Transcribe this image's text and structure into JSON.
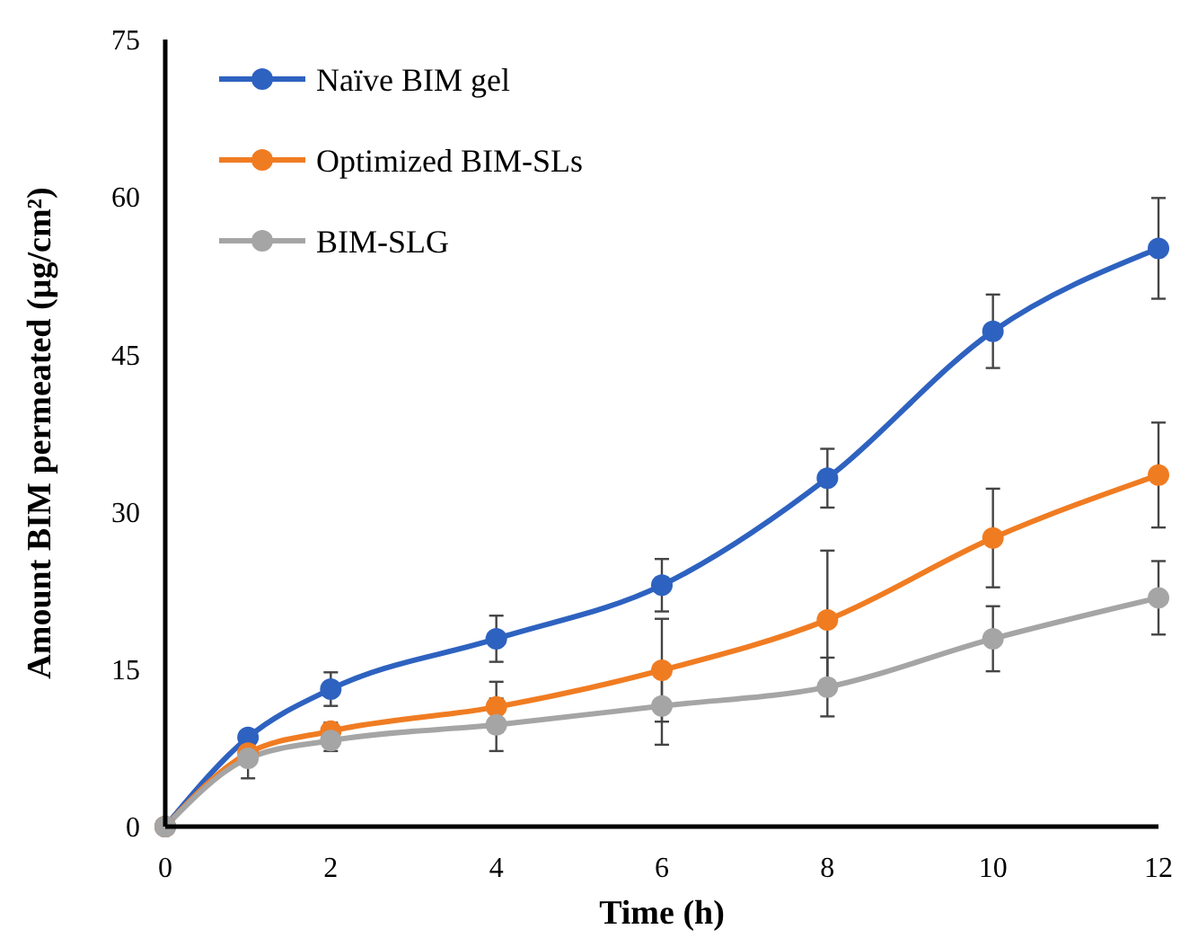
{
  "chart_data": {
    "type": "line",
    "xlabel": "Time (h)",
    "ylabel": "Amount BIM permeated (µg/cm²)",
    "x": [
      0,
      1,
      2,
      4,
      6,
      8,
      10,
      12
    ],
    "xlim": [
      0,
      12
    ],
    "xticks": [
      0,
      2,
      4,
      6,
      8,
      10,
      12
    ],
    "ylim": [
      0,
      75
    ],
    "yticks": [
      0,
      15,
      30,
      45,
      60,
      75
    ],
    "grid": false,
    "legend": "top left",
    "marker": "circle",
    "line_style": "solid",
    "series": [
      {
        "name": "Naïve BIM gel",
        "color": "#2e62c0",
        "values": [
          0,
          8.5,
          13.1,
          17.9,
          23.0,
          33.2,
          47.2,
          55.1
        ],
        "errors": [
          null,
          null,
          1.6,
          2.2,
          2.5,
          2.8,
          3.5,
          4.8
        ]
      },
      {
        "name": "Optimized BIM-SLs",
        "color": "#f07c22",
        "values": [
          0,
          7.0,
          9.1,
          11.4,
          14.9,
          19.7,
          27.5,
          33.5
        ],
        "errors": [
          null,
          null,
          0.8,
          2.4,
          4.9,
          6.6,
          4.7,
          5.0
        ]
      },
      {
        "name": "BIM-SLG",
        "color": "#a5a5a5",
        "values": [
          0,
          6.5,
          8.2,
          9.7,
          11.5,
          13.3,
          17.9,
          21.8
        ],
        "errors": [
          null,
          1.9,
          1.0,
          2.5,
          3.7,
          2.8,
          3.1,
          3.5
        ]
      }
    ]
  }
}
